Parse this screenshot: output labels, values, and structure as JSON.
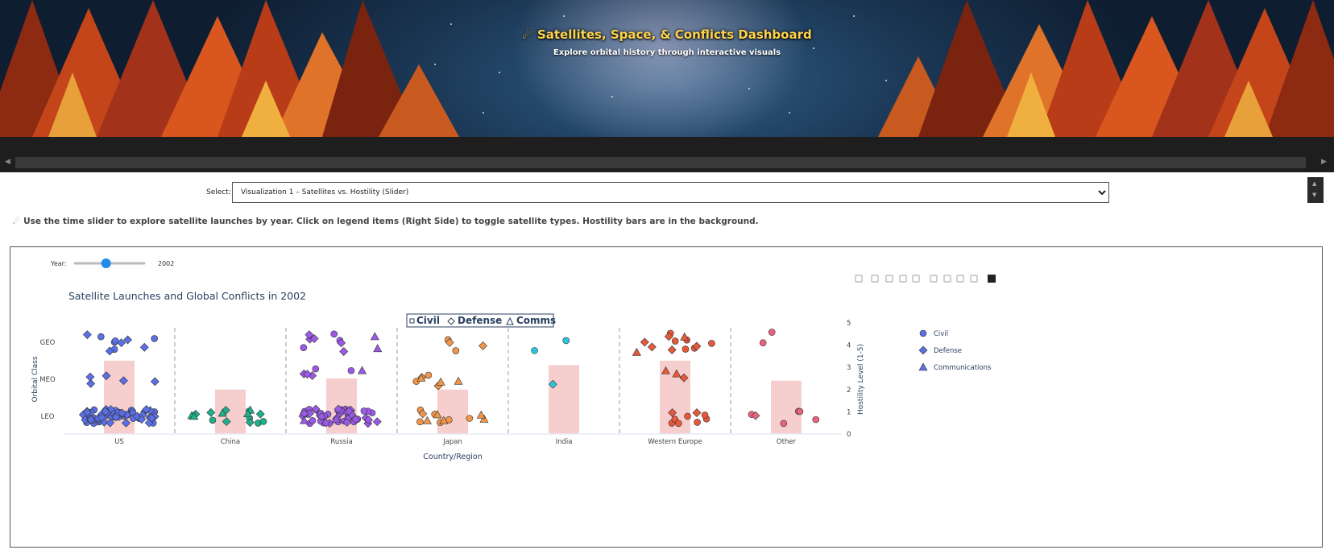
{
  "banner": {
    "icon": "satellite-icon",
    "title": "Satellites, Space, & Conflicts Dashboard",
    "subtitle": "Explore orbital history through interactive visuals"
  },
  "selector": {
    "label": "Select:",
    "value": "Visualization 1 – Satellites vs. Hostility (Slider)"
  },
  "instructions": "Use the time slider to explore satellite launches by year. Click on legend items (Right Side) to toggle satellite types. Hostility bars are in the background.",
  "slider": {
    "label": "Year:",
    "value": "2002",
    "position_fraction": 0.45
  },
  "colors": {
    "US": "#5b6fe6",
    "China": "#1db08a",
    "Russia": "#9b59e6",
    "Japan": "#f0954a",
    "India": "#29c5dc",
    "Western Europe": "#e8583a",
    "Other": "#e8637e",
    "hostility_bar": "#f4c6c6",
    "legend_marker": "#5b6fe6"
  },
  "chart_data": {
    "type": "scatter",
    "title": "Satellite Launches and Global Conflicts in 2002",
    "xlabel": "Country/Region",
    "ylabel": "Orbital Class",
    "y2label": "Hostility Level (1-5)",
    "categories": [
      "US",
      "China",
      "Russia",
      "Japan",
      "India",
      "Western Europe",
      "Other"
    ],
    "orbit_classes": [
      "LEO",
      "MEO",
      "GEO"
    ],
    "y2_ticks": [
      "0",
      "1",
      "2",
      "3",
      "4",
      "5"
    ],
    "y2lim": [
      0,
      5
    ],
    "hostility": [
      3.3,
      2.0,
      2.5,
      2.0,
      3.1,
      3.3,
      2.4
    ],
    "series": [
      {
        "name": "Civil",
        "marker": "circle",
        "counts": {
          "US": [
            30,
            0,
            5
          ],
          "China": [
            5,
            0,
            0
          ],
          "Russia": [
            25,
            2,
            3
          ],
          "Japan": [
            6,
            2,
            2
          ],
          "India": [
            0,
            0,
            2
          ],
          "Western Europe": [
            7,
            0,
            6
          ],
          "Other": [
            5,
            0,
            2
          ]
        }
      },
      {
        "name": "Defense",
        "marker": "diamond",
        "counts": {
          "US": [
            35,
            5,
            5
          ],
          "China": [
            6,
            0,
            0
          ],
          "Russia": [
            25,
            3,
            5
          ],
          "Japan": [
            1,
            2,
            2
          ],
          "India": [
            0,
            1,
            0
          ],
          "Western Europe": [
            2,
            1,
            5
          ],
          "Other": [
            1,
            0,
            0
          ]
        }
      },
      {
        "name": "Communications",
        "marker": "triangle",
        "counts": {
          "US": [
            0,
            0,
            0
          ],
          "China": [
            5,
            0,
            0
          ],
          "Russia": [
            3,
            1,
            2
          ],
          "Japan": [
            5,
            3,
            0
          ],
          "India": [
            0,
            0,
            0
          ],
          "Western Europe": [
            0,
            2,
            2
          ],
          "Other": [
            0,
            0,
            0
          ]
        }
      }
    ],
    "inline_legend": [
      "Civil",
      "Defense",
      "Comms"
    ],
    "legend_placement": "right"
  },
  "modebar": [
    "camera-icon",
    "zoom-icon",
    "pan-icon",
    "box-select-icon",
    "lasso-icon",
    "zoom-in-icon",
    "zoom-out-icon",
    "autoscale-icon",
    "home-icon",
    "plotly-logo-icon"
  ]
}
